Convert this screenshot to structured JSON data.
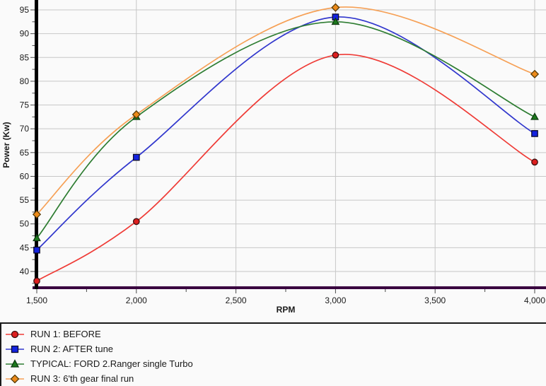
{
  "window": {
    "background": "#fafafa"
  },
  "chart_data": {
    "type": "line",
    "title": "",
    "xlabel": "RPM",
    "ylabel": "Power (Kw)",
    "x": [
      1500,
      2000,
      3000,
      4000
    ],
    "x_major_ticks": [
      1500,
      2000,
      2500,
      3000,
      3500,
      4000
    ],
    "x_tick_labels": [
      "1,500",
      "2,000",
      "2,500",
      "3,000",
      "3,500",
      "4,000"
    ],
    "x_minor_ticks": [
      1750,
      2250,
      2750,
      3250,
      3750
    ],
    "y_major_ticks": [
      40,
      45,
      50,
      55,
      60,
      65,
      70,
      75,
      80,
      85,
      90,
      95
    ],
    "y_minor_ticks": [
      37.5,
      42.5,
      47.5,
      52.5,
      57.5,
      62.5,
      67.5,
      72.5,
      77.5,
      82.5,
      87.5,
      92.5
    ],
    "xlim": [
      1500,
      4057
    ],
    "ylim": [
      36.5,
      97.1
    ],
    "grid": true,
    "legend_position": "bottom-left",
    "series": [
      {
        "name": "RUN 1: BEFORE",
        "marker": "circle",
        "values": [
          38,
          50.5,
          85.5,
          63
        ],
        "line_color": "#ef3b36",
        "marker_fill": "#dd1f1f",
        "marker_edge": "#3c0f0f"
      },
      {
        "name": "RUN 2: AFTER tune",
        "marker": "square",
        "values": [
          44.5,
          64,
          93.5,
          69
        ],
        "line_color": "#3137cd",
        "marker_fill": "#1423e0",
        "marker_edge": "#0c0c2a"
      },
      {
        "name": "TYPICAL: FORD 2.Ranger single Turbo",
        "marker": "triangle",
        "values": [
          47,
          72.5,
          92.5,
          72.5
        ],
        "line_color": "#2e7d32",
        "marker_fill": "#1d7a1d",
        "marker_edge": "#0e3a10"
      },
      {
        "name": "RUN 3: 6'th gear final run",
        "marker": "diamond",
        "values": [
          52,
          73,
          95.5,
          81.5
        ],
        "line_color": "#f6a055",
        "marker_fill": "#ec8a1a",
        "marker_edge": "#553a06"
      }
    ],
    "colors": {
      "plot_background": "#fafafa",
      "grid": "#c7c7c7",
      "y_axis_bar": "#000000",
      "x_axis_line": "#3a0440",
      "tick": "#4a4a4a",
      "label": "#1a1a1a",
      "divider": "#1a1a1a"
    }
  }
}
